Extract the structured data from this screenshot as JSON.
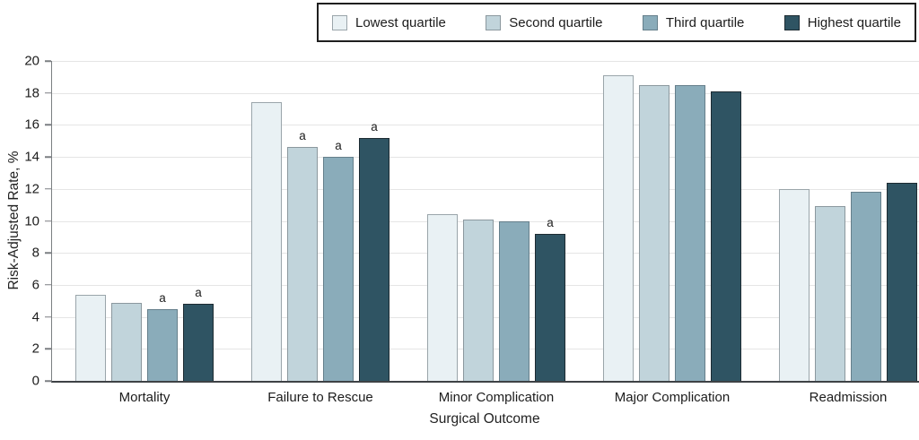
{
  "chart_data": {
    "type": "bar",
    "title": "",
    "categories": [
      "Mortality",
      "Failure to Rescue",
      "Minor Complication",
      "Major Complication",
      "Readmission"
    ],
    "series": [
      {
        "name": "Lowest quartile",
        "color": "#e9f1f4",
        "border_color": "#9aa5aa",
        "values": [
          5.4,
          17.4,
          10.4,
          19.1,
          12.0
        ],
        "annotations": [
          false,
          false,
          false,
          false,
          false
        ]
      },
      {
        "name": "Second quartile",
        "color": "#c1d4db",
        "border_color": "#8b989e",
        "values": [
          4.9,
          14.6,
          10.1,
          18.5,
          10.9
        ],
        "annotations": [
          false,
          true,
          false,
          false,
          false
        ]
      },
      {
        "name": "Third quartile",
        "color": "#8aacba",
        "border_color": "#657f8b",
        "values": [
          4.5,
          14.0,
          10.0,
          18.5,
          11.8
        ],
        "annotations": [
          true,
          true,
          false,
          false,
          false
        ]
      },
      {
        "name": "Highest quartile",
        "color": "#2f5463",
        "border_color": "#1d2b32",
        "values": [
          4.8,
          15.2,
          9.2,
          18.1,
          12.4
        ],
        "annotations": [
          true,
          true,
          true,
          false,
          false
        ]
      }
    ],
    "xlabel": "Surgical Outcome",
    "ylabel": "Risk-Adjusted Rate, %",
    "ylim": [
      0,
      20
    ],
    "yticks": [
      0,
      2,
      4,
      6,
      8,
      10,
      12,
      14,
      16,
      18,
      20
    ],
    "grid": true,
    "legend_position": "top",
    "annotation_glyph": "a",
    "colors": {
      "axis_line": "#7b7f82",
      "baseline": "#3e4245",
      "gridline": "#e5e5e5",
      "text": "#1c1c1c",
      "legend_border": "#1f1f1f"
    }
  }
}
